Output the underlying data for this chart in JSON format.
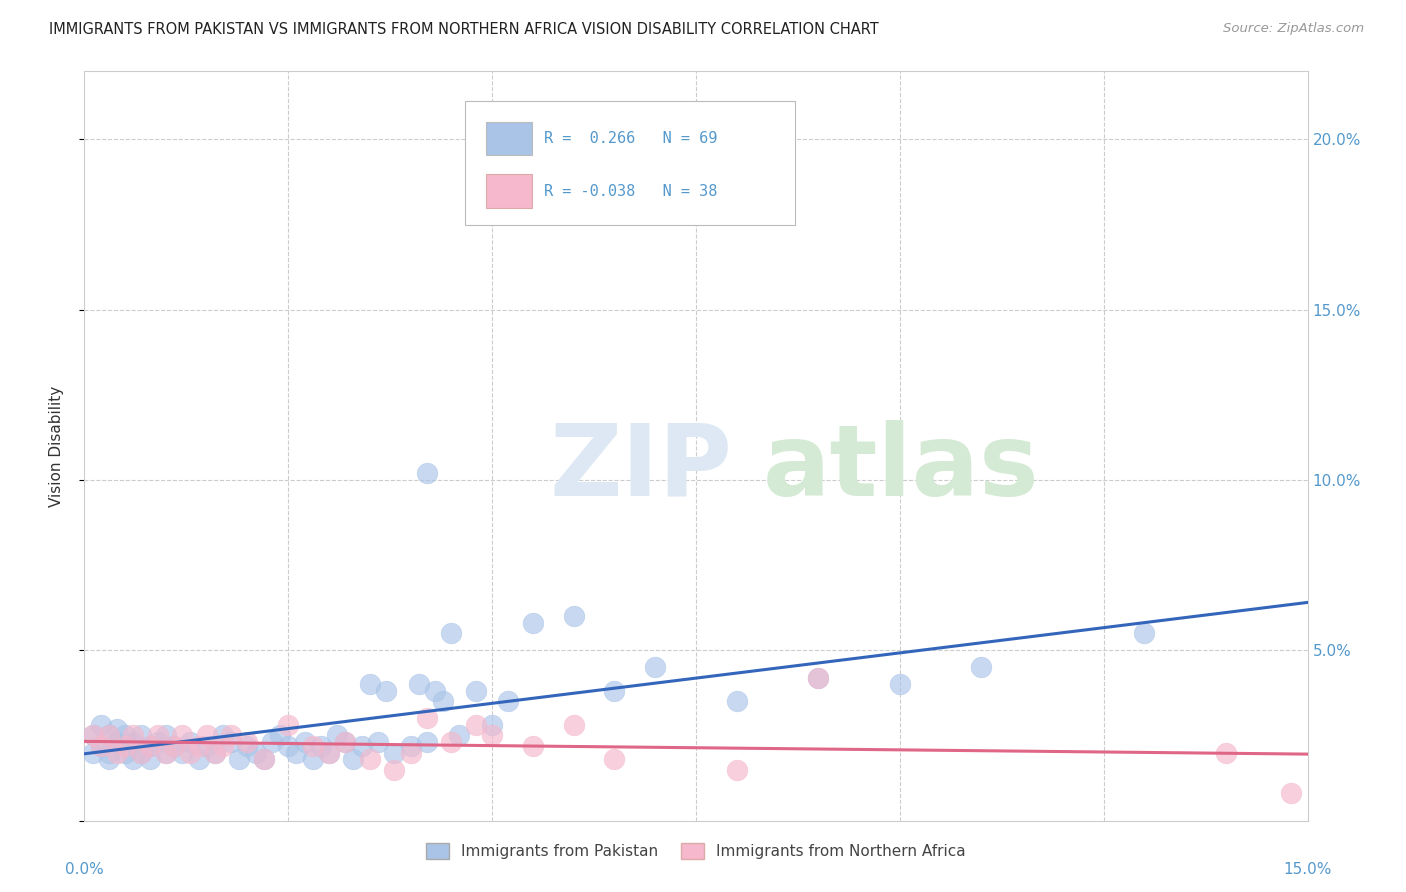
{
  "title": "IMMIGRANTS FROM PAKISTAN VS IMMIGRANTS FROM NORTHERN AFRICA VISION DISABILITY CORRELATION CHART",
  "source": "Source: ZipAtlas.com",
  "ylabel": "Vision Disability",
  "xlim": [
    0.0,
    0.15
  ],
  "ylim": [
    0.0,
    0.22
  ],
  "background_color": "#ffffff",
  "grid_color": "#cccccc",
  "pakistan_color": "#aac4e8",
  "pakistan_edge_color": "#aac4e8",
  "pakistan_line_color": "#3366bb",
  "n_africa_color": "#f5b8cc",
  "n_africa_edge_color": "#f5b8cc",
  "n_africa_line_color": "#e06688",
  "right_tick_color": "#5599cc",
  "R_pakistan": 0.266,
  "N_pakistan": 69,
  "R_nafrica": -0.038,
  "N_nafrica": 38,
  "legend_label_pakistan": "Immigrants from Pakistan",
  "legend_label_nafrica": "Immigrants from Northern Africa",
  "pak_x": [
    0.001,
    0.001,
    0.002,
    0.002,
    0.003,
    0.003,
    0.003,
    0.004,
    0.004,
    0.005,
    0.005,
    0.005,
    0.006,
    0.006,
    0.007,
    0.007,
    0.008,
    0.008,
    0.009,
    0.01,
    0.01,
    0.011,
    0.012,
    0.013,
    0.014,
    0.015,
    0.016,
    0.017,
    0.018,
    0.019,
    0.02,
    0.021,
    0.022,
    0.023,
    0.024,
    0.025,
    0.026,
    0.027,
    0.028,
    0.029,
    0.03,
    0.031,
    0.032,
    0.033,
    0.034,
    0.035,
    0.036,
    0.037,
    0.038,
    0.04,
    0.041,
    0.042,
    0.043,
    0.044,
    0.045,
    0.046,
    0.048,
    0.05,
    0.052,
    0.055,
    0.06,
    0.065,
    0.07,
    0.08,
    0.09,
    0.1,
    0.11,
    0.13,
    0.042
  ],
  "pak_y": [
    0.025,
    0.02,
    0.022,
    0.028,
    0.02,
    0.025,
    0.018,
    0.023,
    0.027,
    0.022,
    0.02,
    0.025,
    0.023,
    0.018,
    0.025,
    0.02,
    0.022,
    0.018,
    0.023,
    0.02,
    0.025,
    0.022,
    0.02,
    0.023,
    0.018,
    0.022,
    0.02,
    0.025,
    0.023,
    0.018,
    0.022,
    0.02,
    0.018,
    0.023,
    0.025,
    0.022,
    0.02,
    0.023,
    0.018,
    0.022,
    0.02,
    0.025,
    0.023,
    0.018,
    0.022,
    0.04,
    0.023,
    0.038,
    0.02,
    0.022,
    0.04,
    0.023,
    0.038,
    0.035,
    0.055,
    0.025,
    0.038,
    0.028,
    0.035,
    0.058,
    0.06,
    0.038,
    0.045,
    0.035,
    0.042,
    0.04,
    0.045,
    0.055,
    0.102
  ],
  "afr_x": [
    0.001,
    0.002,
    0.003,
    0.004,
    0.005,
    0.006,
    0.007,
    0.008,
    0.009,
    0.01,
    0.011,
    0.012,
    0.013,
    0.014,
    0.015,
    0.016,
    0.017,
    0.018,
    0.02,
    0.022,
    0.025,
    0.028,
    0.03,
    0.032,
    0.035,
    0.038,
    0.04,
    0.042,
    0.045,
    0.048,
    0.05,
    0.055,
    0.06,
    0.065,
    0.08,
    0.09,
    0.14,
    0.148
  ],
  "afr_y": [
    0.025,
    0.022,
    0.025,
    0.02,
    0.022,
    0.025,
    0.02,
    0.022,
    0.025,
    0.02,
    0.022,
    0.025,
    0.02,
    0.022,
    0.025,
    0.02,
    0.022,
    0.025,
    0.023,
    0.018,
    0.028,
    0.022,
    0.02,
    0.023,
    0.018,
    0.015,
    0.02,
    0.03,
    0.023,
    0.028,
    0.025,
    0.022,
    0.028,
    0.018,
    0.015,
    0.042,
    0.02,
    0.008
  ]
}
